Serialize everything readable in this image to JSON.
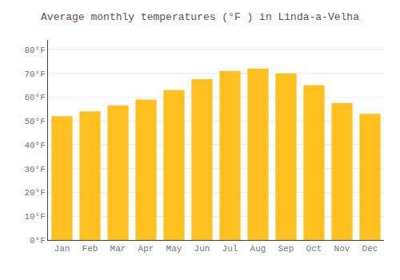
{
  "chart_data": {
    "type": "bar",
    "title": "Average monthly temperatures (°F ) in Linda-a-Velha",
    "categories": [
      "Jan",
      "Feb",
      "Mar",
      "Apr",
      "May",
      "Jun",
      "Jul",
      "Aug",
      "Sep",
      "Oct",
      "Nov",
      "Dec"
    ],
    "values": [
      52,
      54,
      56.5,
      59,
      63,
      67.5,
      71,
      72,
      70,
      65,
      57.5,
      53
    ],
    "color": "#FFC020",
    "ylim": [
      0,
      84
    ],
    "yticks": [
      {
        "value": 0,
        "label": "0°F"
      },
      {
        "value": 10,
        "label": "10°F"
      },
      {
        "value": 20,
        "label": "20°F"
      },
      {
        "value": 30,
        "label": "30°F"
      },
      {
        "value": 40,
        "label": "40°F"
      },
      {
        "value": 50,
        "label": "50°F"
      },
      {
        "value": 60,
        "label": "60°F"
      },
      {
        "value": 70,
        "label": "70°F"
      },
      {
        "value": 80,
        "label": "80°F"
      }
    ],
    "grid": true
  }
}
